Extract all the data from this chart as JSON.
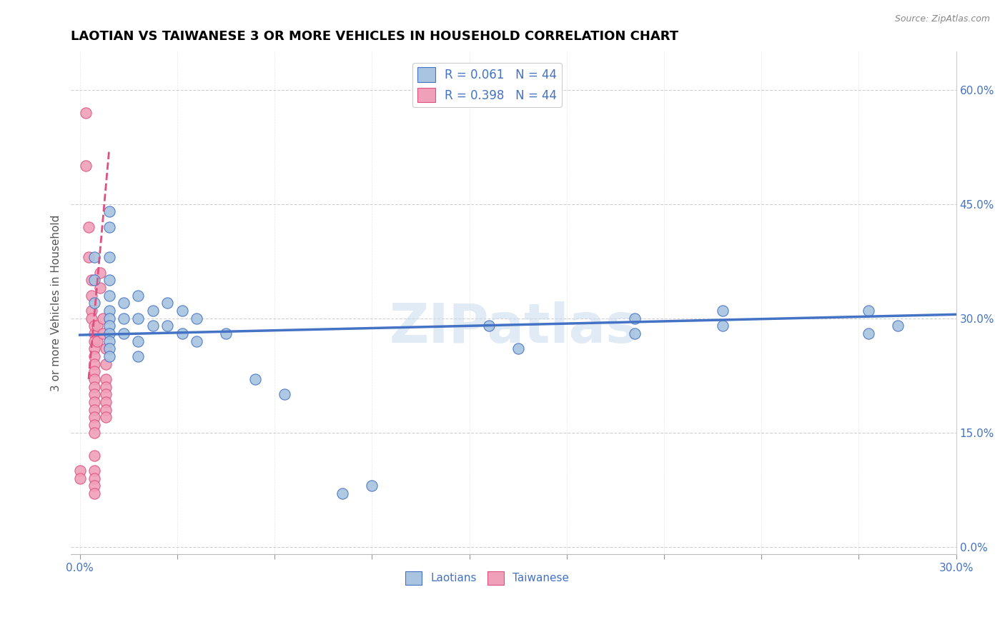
{
  "title": "LAOTIAN VS TAIWANESE 3 OR MORE VEHICLES IN HOUSEHOLD CORRELATION CHART",
  "source": "Source: ZipAtlas.com",
  "xlim": [
    0.0,
    0.3
  ],
  "ylim": [
    0.0,
    0.65
  ],
  "watermark": "ZIPatlas",
  "legend_r1": "R = 0.061",
  "legend_n1": "N = 44",
  "legend_r2": "R = 0.398",
  "legend_n2": "N = 44",
  "laotian_color": "#a8c4e0",
  "taiwanese_color": "#f0a0b8",
  "trend_laotian_color": "#4472c4",
  "trend_taiwanese_color": "#e05080",
  "laotian_points": [
    [
      0.005,
      0.38
    ],
    [
      0.005,
      0.35
    ],
    [
      0.005,
      0.32
    ],
    [
      0.01,
      0.44
    ],
    [
      0.01,
      0.42
    ],
    [
      0.01,
      0.38
    ],
    [
      0.01,
      0.35
    ],
    [
      0.01,
      0.33
    ],
    [
      0.01,
      0.31
    ],
    [
      0.01,
      0.3
    ],
    [
      0.01,
      0.29
    ],
    [
      0.01,
      0.28
    ],
    [
      0.01,
      0.27
    ],
    [
      0.01,
      0.26
    ],
    [
      0.01,
      0.25
    ],
    [
      0.015,
      0.32
    ],
    [
      0.015,
      0.3
    ],
    [
      0.015,
      0.28
    ],
    [
      0.02,
      0.33
    ],
    [
      0.02,
      0.3
    ],
    [
      0.02,
      0.27
    ],
    [
      0.02,
      0.25
    ],
    [
      0.025,
      0.31
    ],
    [
      0.025,
      0.29
    ],
    [
      0.03,
      0.32
    ],
    [
      0.03,
      0.29
    ],
    [
      0.035,
      0.31
    ],
    [
      0.035,
      0.28
    ],
    [
      0.04,
      0.3
    ],
    [
      0.04,
      0.27
    ],
    [
      0.05,
      0.28
    ],
    [
      0.06,
      0.22
    ],
    [
      0.07,
      0.2
    ],
    [
      0.09,
      0.07
    ],
    [
      0.1,
      0.08
    ],
    [
      0.14,
      0.29
    ],
    [
      0.15,
      0.26
    ],
    [
      0.19,
      0.3
    ],
    [
      0.19,
      0.28
    ],
    [
      0.22,
      0.31
    ],
    [
      0.22,
      0.29
    ],
    [
      0.27,
      0.31
    ],
    [
      0.27,
      0.28
    ],
    [
      0.28,
      0.29
    ]
  ],
  "taiwanese_points": [
    [
      0.002,
      0.57
    ],
    [
      0.002,
      0.5
    ],
    [
      0.003,
      0.42
    ],
    [
      0.003,
      0.38
    ],
    [
      0.004,
      0.35
    ],
    [
      0.004,
      0.33
    ],
    [
      0.004,
      0.31
    ],
    [
      0.004,
      0.3
    ],
    [
      0.005,
      0.29
    ],
    [
      0.005,
      0.28
    ],
    [
      0.005,
      0.27
    ],
    [
      0.005,
      0.26
    ],
    [
      0.005,
      0.25
    ],
    [
      0.005,
      0.24
    ],
    [
      0.005,
      0.23
    ],
    [
      0.005,
      0.22
    ],
    [
      0.005,
      0.21
    ],
    [
      0.005,
      0.2
    ],
    [
      0.005,
      0.19
    ],
    [
      0.005,
      0.18
    ],
    [
      0.005,
      0.17
    ],
    [
      0.005,
      0.16
    ],
    [
      0.005,
      0.15
    ],
    [
      0.005,
      0.12
    ],
    [
      0.005,
      0.1
    ],
    [
      0.005,
      0.09
    ],
    [
      0.005,
      0.08
    ],
    [
      0.005,
      0.07
    ],
    [
      0.006,
      0.29
    ],
    [
      0.006,
      0.27
    ],
    [
      0.007,
      0.36
    ],
    [
      0.007,
      0.34
    ],
    [
      0.008,
      0.3
    ],
    [
      0.008,
      0.28
    ],
    [
      0.009,
      0.26
    ],
    [
      0.009,
      0.24
    ],
    [
      0.0,
      0.1
    ],
    [
      0.0,
      0.09
    ],
    [
      0.009,
      0.22
    ],
    [
      0.009,
      0.21
    ],
    [
      0.009,
      0.2
    ],
    [
      0.009,
      0.19
    ],
    [
      0.009,
      0.18
    ],
    [
      0.009,
      0.17
    ]
  ],
  "laotian_trend_x": [
    0.0,
    0.3
  ],
  "laotian_trend_y": [
    0.278,
    0.305
  ],
  "taiwanese_trend_x": [
    0.003,
    0.01
  ],
  "taiwanese_trend_y": [
    0.22,
    0.52
  ]
}
